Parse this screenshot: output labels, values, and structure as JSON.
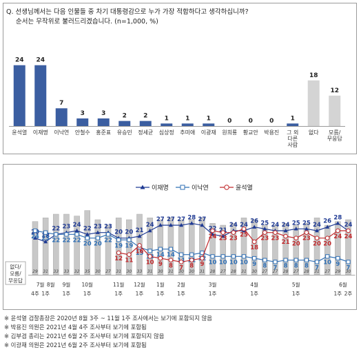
{
  "question": {
    "line1": "Q. 선생님께서는 다음 인물들 중 차기 대통령감으로 누가 가장 적합하다고 생각하십니까?",
    "line2": "순서는 무작위로 불러드리겠습니다. (n=1,000, %)"
  },
  "chart_data": [
    {
      "type": "bar",
      "categories": [
        "윤석열",
        "이재명",
        "이낙연",
        "안철수",
        "홍준표",
        "유승민",
        "정세균",
        "심상정",
        "추미애",
        "이광재",
        "원희룡",
        "황교안",
        "박용진",
        "그 외\n다른\n사람",
        "없다",
        "모름/\n무응답"
      ],
      "values": [
        24,
        24,
        7,
        3,
        3,
        2,
        2,
        1,
        1,
        1,
        0,
        0,
        0,
        1,
        18,
        12
      ],
      "colors": [
        "#3b5ea1",
        "#3b5ea1",
        "#3b5ea1",
        "#3b5ea1",
        "#3b5ea1",
        "#3b5ea1",
        "#3b5ea1",
        "#3b5ea1",
        "#3b5ea1",
        "#3b5ea1",
        "#3b5ea1",
        "#3b5ea1",
        "#3b5ea1",
        "#3b5ea1",
        "#d4d4d4",
        "#d4d4d4"
      ],
      "ylim": [
        0,
        25
      ]
    },
    {
      "type": "line",
      "legend": [
        "이재명",
        "이낙연",
        "윤석열"
      ],
      "legend_position": "top-center",
      "series_colors": [
        "#1f3a93",
        "#2f6fb5",
        "#c0282b"
      ],
      "bar_label": "없다/\n모름/\n무응답",
      "x_month_labels": [
        {
          "text": "7월",
          "at": 0.5
        },
        {
          "text": "8월",
          "at": 1.5
        },
        {
          "text": "9월",
          "at": 3
        },
        {
          "text": "10월",
          "at": 5
        },
        {
          "text": "11월",
          "at": 8
        },
        {
          "text": "12월",
          "at": 10
        },
        {
          "text": "1월",
          "at": 12
        },
        {
          "text": "2월",
          "at": 14
        },
        {
          "text": "3월",
          "at": 17
        },
        {
          "text": "4월",
          "at": 21
        },
        {
          "text": "5월",
          "at": 25
        },
        {
          "text": "6월",
          "at": 29.5
        }
      ],
      "x_week_labels": [
        {
          "text": "4주",
          "at": 0
        },
        {
          "text": "1주",
          "at": 1
        },
        {
          "text": "1주",
          "at": 3
        },
        {
          "text": "1주",
          "at": 5
        },
        {
          "text": "1주",
          "at": 8
        },
        {
          "text": "1주",
          "at": 10
        },
        {
          "text": "1주",
          "at": 12
        },
        {
          "text": "1주",
          "at": 14
        },
        {
          "text": "1주",
          "at": 17
        },
        {
          "text": "1주",
          "at": 21
        },
        {
          "text": "1주",
          "at": 25
        },
        {
          "text": "1주",
          "at": 29
        },
        {
          "text": "2주",
          "at": 30
        }
      ],
      "bars": [
        29,
        31,
        33,
        33,
        32,
        35,
        30,
        27,
        31,
        30,
        33,
        31,
        30,
        31,
        30,
        30,
        31,
        28,
        27,
        28,
        31,
        30,
        27,
        27,
        28,
        27,
        28,
        31,
        27,
        29,
        30
      ],
      "series": [
        {
          "name": "이재명",
          "values": [
            20,
            18,
            22,
            23,
            24,
            22,
            23,
            23,
            20,
            20,
            21,
            24,
            27,
            27,
            27,
            28,
            27,
            22,
            21,
            24,
            24,
            26,
            25,
            24,
            24,
            25,
            25,
            24,
            26,
            28,
            24
          ]
        },
        {
          "name": "이낙연",
          "values": [
            24,
            23,
            22,
            22,
            22,
            20,
            20,
            22,
            19,
            19,
            15,
            13,
            14,
            14,
            11,
            11,
            12,
            10,
            10,
            10,
            10,
            9,
            8,
            7,
            8,
            8,
            8,
            7,
            10,
            9,
            7
          ]
        },
        {
          "name": "윤석열",
          "values": [
            null,
            null,
            null,
            null,
            null,
            null,
            null,
            null,
            12,
            11,
            16,
            10,
            9,
            8,
            7,
            8,
            9,
            24,
            23,
            23,
            25,
            18,
            23,
            23,
            21,
            20,
            23,
            20,
            20,
            24,
            24
          ]
        }
      ],
      "ylim": [
        0,
        36
      ]
    }
  ],
  "notes": [
    "※ 윤석열 검찰총장은 2020년 8월 3주 ~ 11월 1주 조사에서는 보기에 포함되지 않음",
    "※ 박용진 의원은 2021년 4월 4주 조사부터 보기에 포함됨",
    "※ 김부겸 총리는 2021년 6월 2주 조사부터 보기에 포함되지 않음",
    "※ 이광재 의원은 2021년 6월 2주 조사부터 보기에 포함됨"
  ]
}
